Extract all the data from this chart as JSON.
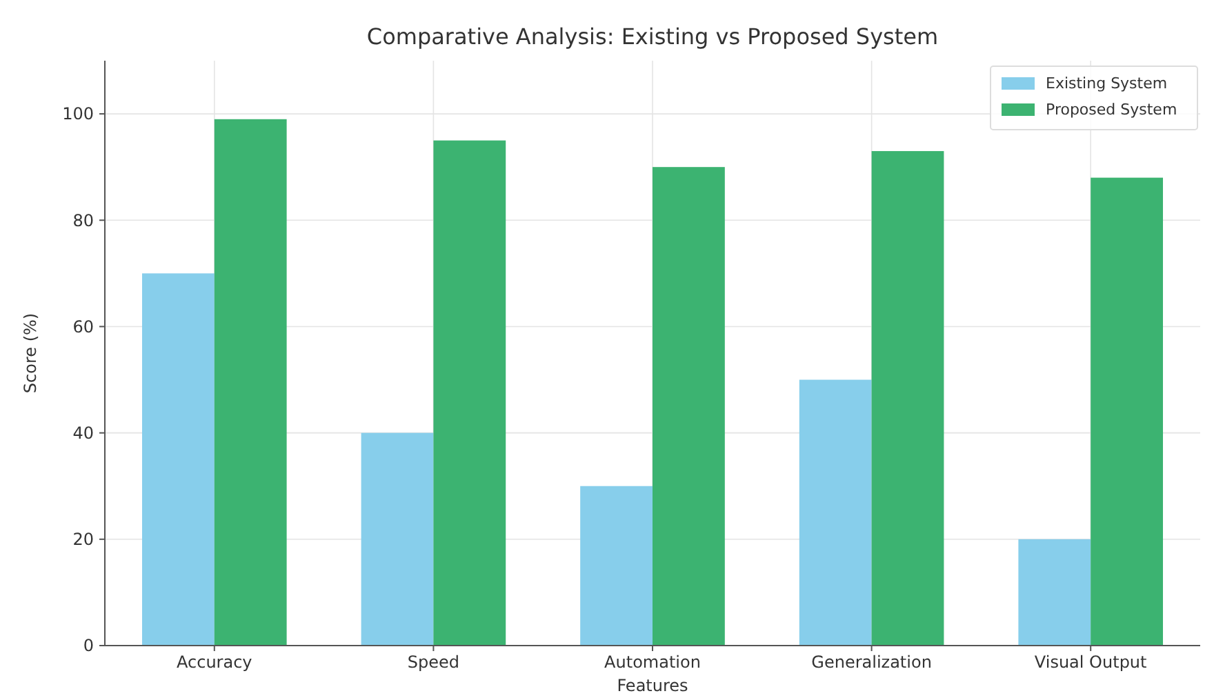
{
  "chart_data": {
    "type": "bar",
    "title": "Comparative Analysis: Existing vs Proposed System",
    "xlabel": "Features",
    "ylabel": "Score (%)",
    "categories": [
      "Accuracy",
      "Speed",
      "Automation",
      "Generalization",
      "Visual Output"
    ],
    "series": [
      {
        "name": "Existing System",
        "color": "#87ceeb",
        "values": [
          70,
          40,
          30,
          50,
          20
        ]
      },
      {
        "name": "Proposed System",
        "color": "#3cb371",
        "values": [
          99,
          95,
          90,
          93,
          88
        ]
      }
    ],
    "ylim": [
      0,
      110
    ],
    "yticks": [
      0,
      20,
      40,
      60,
      80,
      100
    ],
    "grid": true,
    "legend": "top right"
  }
}
